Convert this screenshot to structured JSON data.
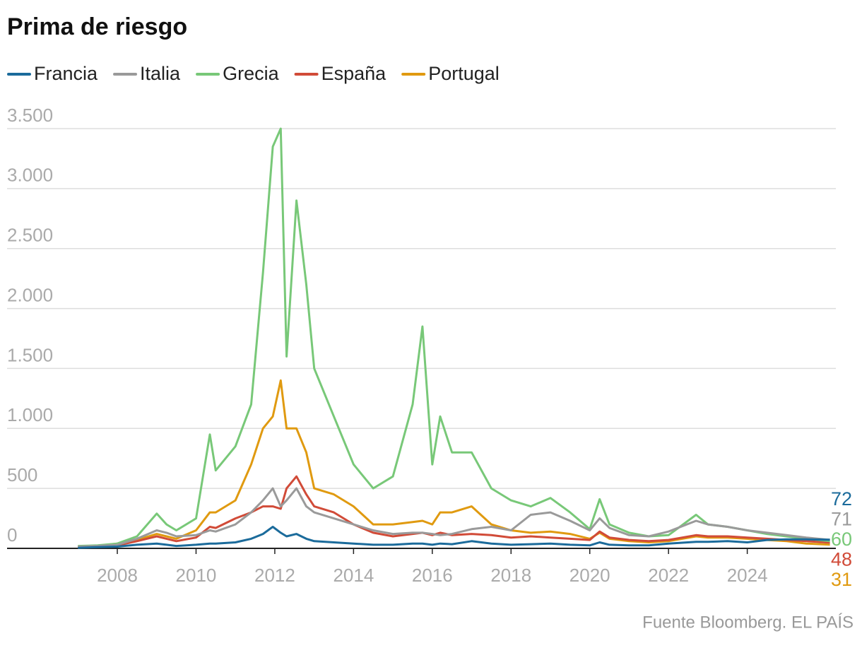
{
  "chart_data": {
    "type": "line",
    "title": "Prima de riesgo",
    "source": "Fuente Bloomberg. EL PAÍS",
    "x": [
      2007,
      2007.5,
      2008,
      2008.5,
      2009,
      2009.25,
      2009.5,
      2010,
      2010.35,
      2010.5,
      2011,
      2011.4,
      2011.7,
      2011.95,
      2012.15,
      2012.3,
      2012.55,
      2012.8,
      2013,
      2013.5,
      2014,
      2014.5,
      2015,
      2015.5,
      2015.75,
      2016,
      2016.2,
      2016.5,
      2017,
      2017.5,
      2018,
      2018.5,
      2019,
      2019.5,
      2020,
      2020.25,
      2020.5,
      2021,
      2021.5,
      2022,
      2022.7,
      2023,
      2023.5,
      2024,
      2024.5,
      2025,
      2025.5,
      2026.1
    ],
    "series": [
      {
        "name": "Francia",
        "color": "#1b6b9b",
        "values": [
          5,
          10,
          15,
          30,
          40,
          30,
          20,
          30,
          40,
          40,
          50,
          80,
          120,
          180,
          130,
          100,
          120,
          80,
          60,
          50,
          40,
          30,
          30,
          40,
          40,
          30,
          40,
          35,
          60,
          40,
          30,
          35,
          40,
          30,
          25,
          50,
          30,
          25,
          25,
          40,
          55,
          55,
          60,
          50,
          70,
          75,
          75,
          72
        ]
      },
      {
        "name": "Italia",
        "color": "#9a9a9a",
        "values": [
          15,
          20,
          30,
          80,
          150,
          130,
          100,
          110,
          150,
          140,
          200,
          300,
          400,
          500,
          350,
          400,
          500,
          350,
          300,
          250,
          200,
          150,
          120,
          130,
          130,
          120,
          110,
          120,
          160,
          180,
          150,
          280,
          300,
          230,
          150,
          250,
          170,
          110,
          100,
          140,
          230,
          200,
          180,
          150,
          130,
          110,
          90,
          71
        ]
      },
      {
        "name": "Grecia",
        "color": "#78c878",
        "values": [
          20,
          25,
          40,
          100,
          290,
          200,
          150,
          250,
          950,
          650,
          850,
          1200,
          2300,
          3350,
          3500,
          1600,
          2900,
          2200,
          1500,
          1100,
          700,
          500,
          600,
          1200,
          1850,
          700,
          1100,
          800,
          800,
          500,
          400,
          350,
          420,
          300,
          160,
          410,
          200,
          130,
          100,
          110,
          280,
          200,
          180,
          150,
          120,
          100,
          80,
          60
        ]
      },
      {
        "name": "España",
        "color": "#d14b38",
        "values": [
          10,
          15,
          25,
          60,
          100,
          80,
          60,
          90,
          180,
          170,
          250,
          300,
          350,
          350,
          330,
          500,
          600,
          450,
          350,
          300,
          200,
          130,
          100,
          120,
          130,
          110,
          130,
          110,
          120,
          110,
          90,
          100,
          90,
          80,
          70,
          140,
          90,
          70,
          60,
          70,
          110,
          100,
          100,
          90,
          80,
          70,
          60,
          48
        ]
      },
      {
        "name": "Portugal",
        "color": "#e09a10",
        "values": [
          15,
          20,
          40,
          70,
          120,
          100,
          80,
          150,
          300,
          300,
          400,
          700,
          1000,
          1100,
          1400,
          1000,
          1000,
          800,
          500,
          450,
          350,
          200,
          200,
          220,
          230,
          200,
          300,
          300,
          350,
          200,
          150,
          130,
          140,
          120,
          80,
          130,
          80,
          60,
          50,
          60,
          100,
          90,
          90,
          80,
          70,
          60,
          40,
          31
        ]
      }
    ],
    "xlim": [
      2005.2,
      2026.25
    ],
    "xticks": [
      2008,
      2010,
      2012,
      2014,
      2016,
      2018,
      2020,
      2022,
      2024
    ],
    "ylim": [
      0,
      3500
    ],
    "yticks": [
      0,
      500,
      {
        "value": 1000,
        "label": "1.000"
      },
      {
        "value": 1500,
        "label": "1.500"
      },
      {
        "value": 2000,
        "label": "2.000"
      },
      {
        "value": 2500,
        "label": "2.500"
      },
      {
        "value": 3000,
        "label": "3.000"
      },
      {
        "value": 3500,
        "label": "3.500"
      }
    ],
    "grid": true,
    "legend": "top-left"
  }
}
